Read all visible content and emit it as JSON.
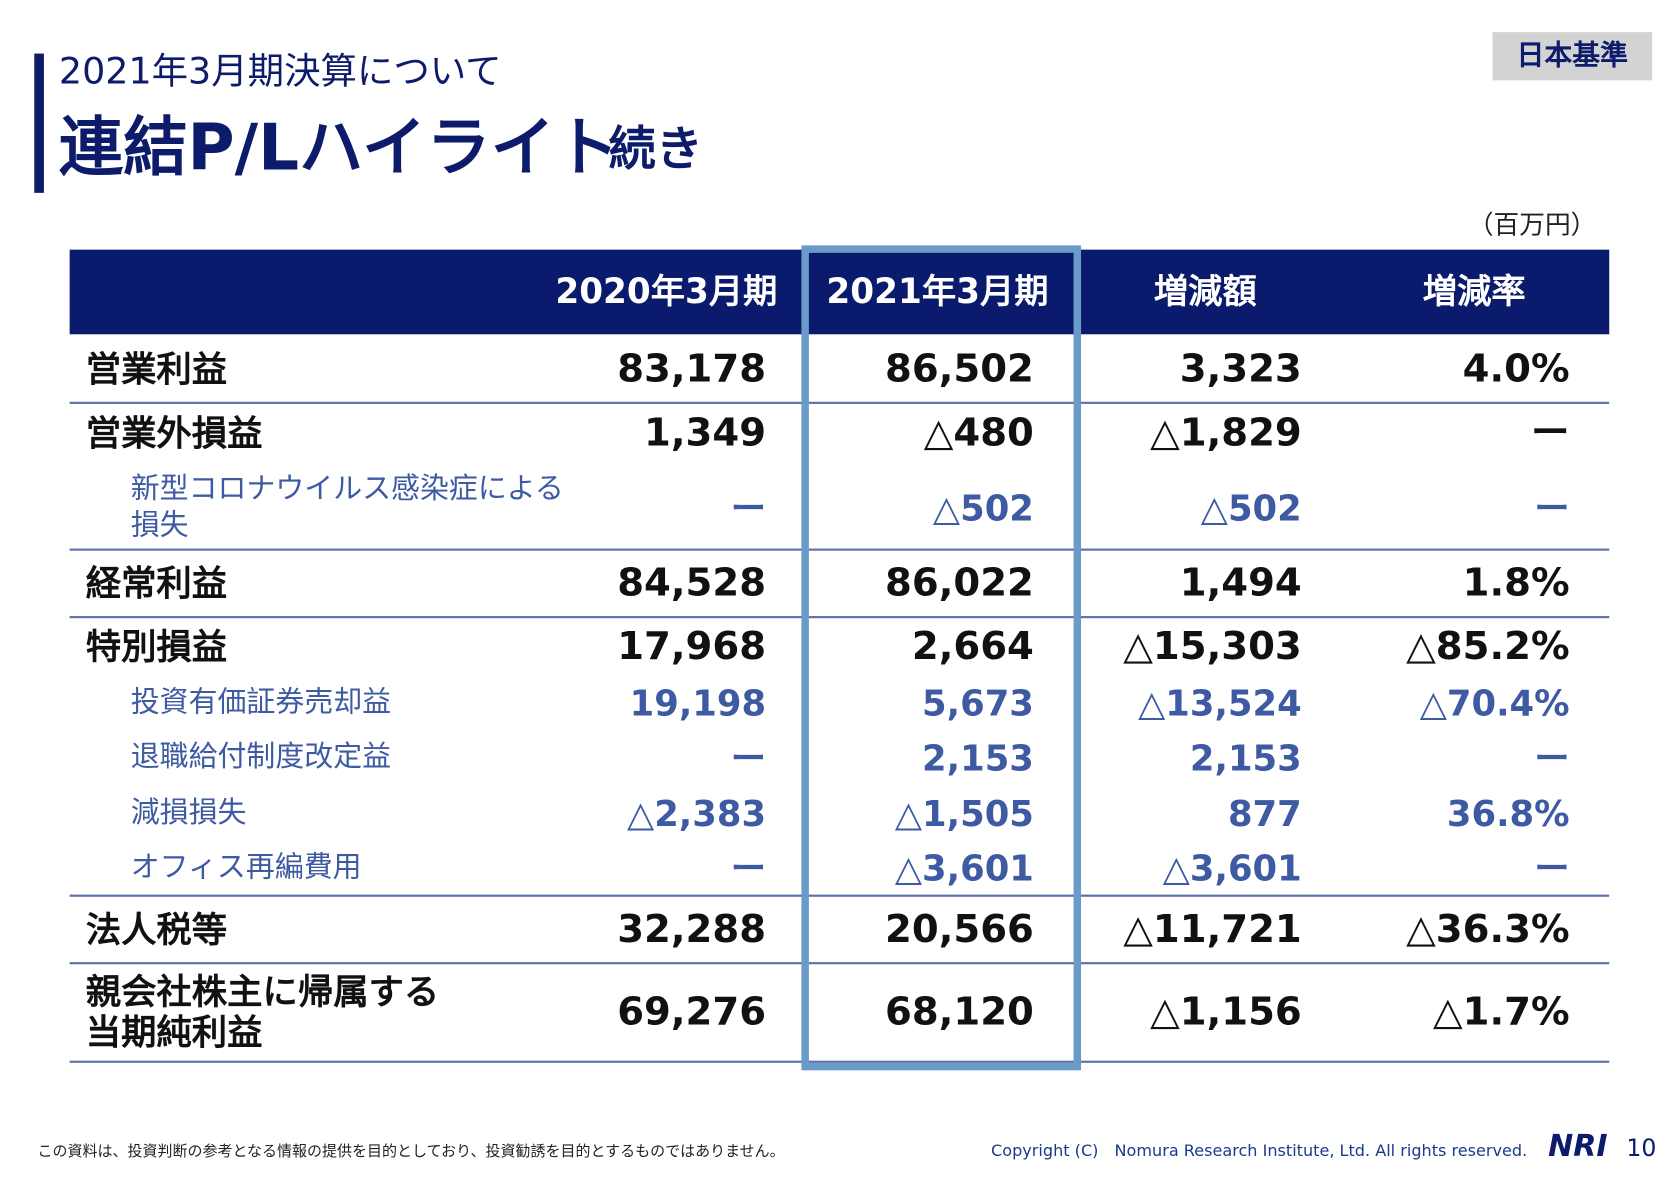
{
  "header": {
    "subtitle": "2021年3月期決算について",
    "title": "連結P/Lハイライト",
    "title_suffix": "続き",
    "badge": "日本基準",
    "unit": "（百万円）"
  },
  "table": {
    "columns": [
      "2020年3月期",
      "2021年3月期",
      "増減額",
      "増減率"
    ],
    "rows": [
      {
        "label": "営業利益",
        "values": [
          "83,178",
          "86,502",
          "3,323",
          "4.0%"
        ]
      },
      {
        "label": "営業外損益",
        "values": [
          "1,349",
          "△480",
          "△1,829",
          "ー"
        ],
        "items": [
          {
            "label": "新型コロナウイルス感染症による\n損失",
            "values": [
              "ー",
              "△502",
              "△502",
              "ー"
            ]
          }
        ]
      },
      {
        "label": "経常利益",
        "values": [
          "84,528",
          "86,022",
          "1,494",
          "1.8%"
        ]
      },
      {
        "label": "特別損益",
        "values": [
          "17,968",
          "2,664",
          "△15,303",
          "△85.2%"
        ],
        "items": [
          {
            "label": "投資有価証券売却益",
            "values": [
              "19,198",
              "5,673",
              "△13,524",
              "△70.4%"
            ]
          },
          {
            "label": "退職給付制度改定益",
            "values": [
              "ー",
              "2,153",
              "2,153",
              "ー"
            ]
          },
          {
            "label": "減損損失",
            "values": [
              "△2,383",
              "△1,505",
              "877",
              "36.8%"
            ]
          },
          {
            "label": "オフィス再編費用",
            "values": [
              "ー",
              "△3,601",
              "△3,601",
              "ー"
            ]
          }
        ]
      },
      {
        "label": "法人税等",
        "values": [
          "32,288",
          "20,566",
          "△11,721",
          "△36.3%"
        ]
      },
      {
        "label": "親会社株主に帰属する\n当期純利益",
        "values": [
          "69,276",
          "68,120",
          "△1,156",
          "△1.7%"
        ]
      }
    ]
  },
  "footer": {
    "disclaimer": "この資料は、投資判断の参考となる情報の提供を目的としており、投資勧誘を目的とするものではありません。",
    "copyright": "Copyright (C)　Nomura Research Institute, Ltd. All rights reserved.",
    "logo": "NRI",
    "page": "10"
  }
}
